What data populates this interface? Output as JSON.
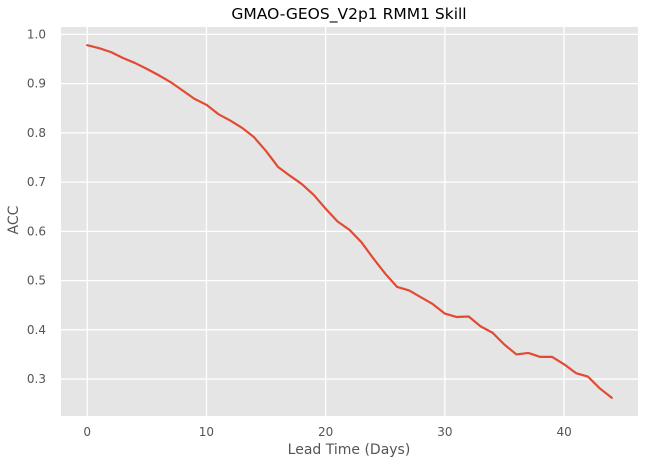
{
  "chart_data": {
    "type": "line",
    "title": "GMAO-GEOS_V2p1 RMM1 Skill",
    "xlabel": "Lead Time (Days)",
    "ylabel": "ACC",
    "xlim": [
      -2.2,
      46.2
    ],
    "ylim": [
      0.225,
      1.015
    ],
    "xticks": [
      0,
      10,
      20,
      30,
      40
    ],
    "yticks": [
      0.3,
      0.4,
      0.5,
      0.6,
      0.7,
      0.8,
      0.9,
      1.0
    ],
    "xtick_labels": [
      "0",
      "10",
      "20",
      "30",
      "40"
    ],
    "ytick_labels": [
      "0.3",
      "0.4",
      "0.5",
      "0.6",
      "0.7",
      "0.8",
      "0.9",
      "1.0"
    ],
    "grid": true,
    "background": "#e5e5e5",
    "grid_color": "#ffffff",
    "series": [
      {
        "color": "#e24a33",
        "x": [
          0,
          1,
          2,
          3,
          4,
          5,
          6,
          7,
          8,
          9,
          10,
          11,
          12,
          13,
          14,
          15,
          16,
          17,
          18,
          19,
          20,
          21,
          22,
          23,
          24,
          25,
          26,
          27,
          28,
          29,
          30,
          31,
          32,
          33,
          34,
          35,
          36,
          37,
          38,
          39,
          40,
          41,
          42,
          43,
          44
        ],
        "values": [
          0.978,
          0.972,
          0.964,
          0.952,
          0.942,
          0.93,
          0.917,
          0.903,
          0.886,
          0.869,
          0.857,
          0.838,
          0.825,
          0.81,
          0.791,
          0.763,
          0.731,
          0.713,
          0.696,
          0.674,
          0.646,
          0.62,
          0.603,
          0.578,
          0.545,
          0.514,
          0.487,
          0.48,
          0.466,
          0.452,
          0.433,
          0.426,
          0.427,
          0.407,
          0.394,
          0.37,
          0.35,
          0.353,
          0.345,
          0.345,
          0.33,
          0.312,
          0.305,
          0.281,
          0.262
        ]
      }
    ]
  }
}
